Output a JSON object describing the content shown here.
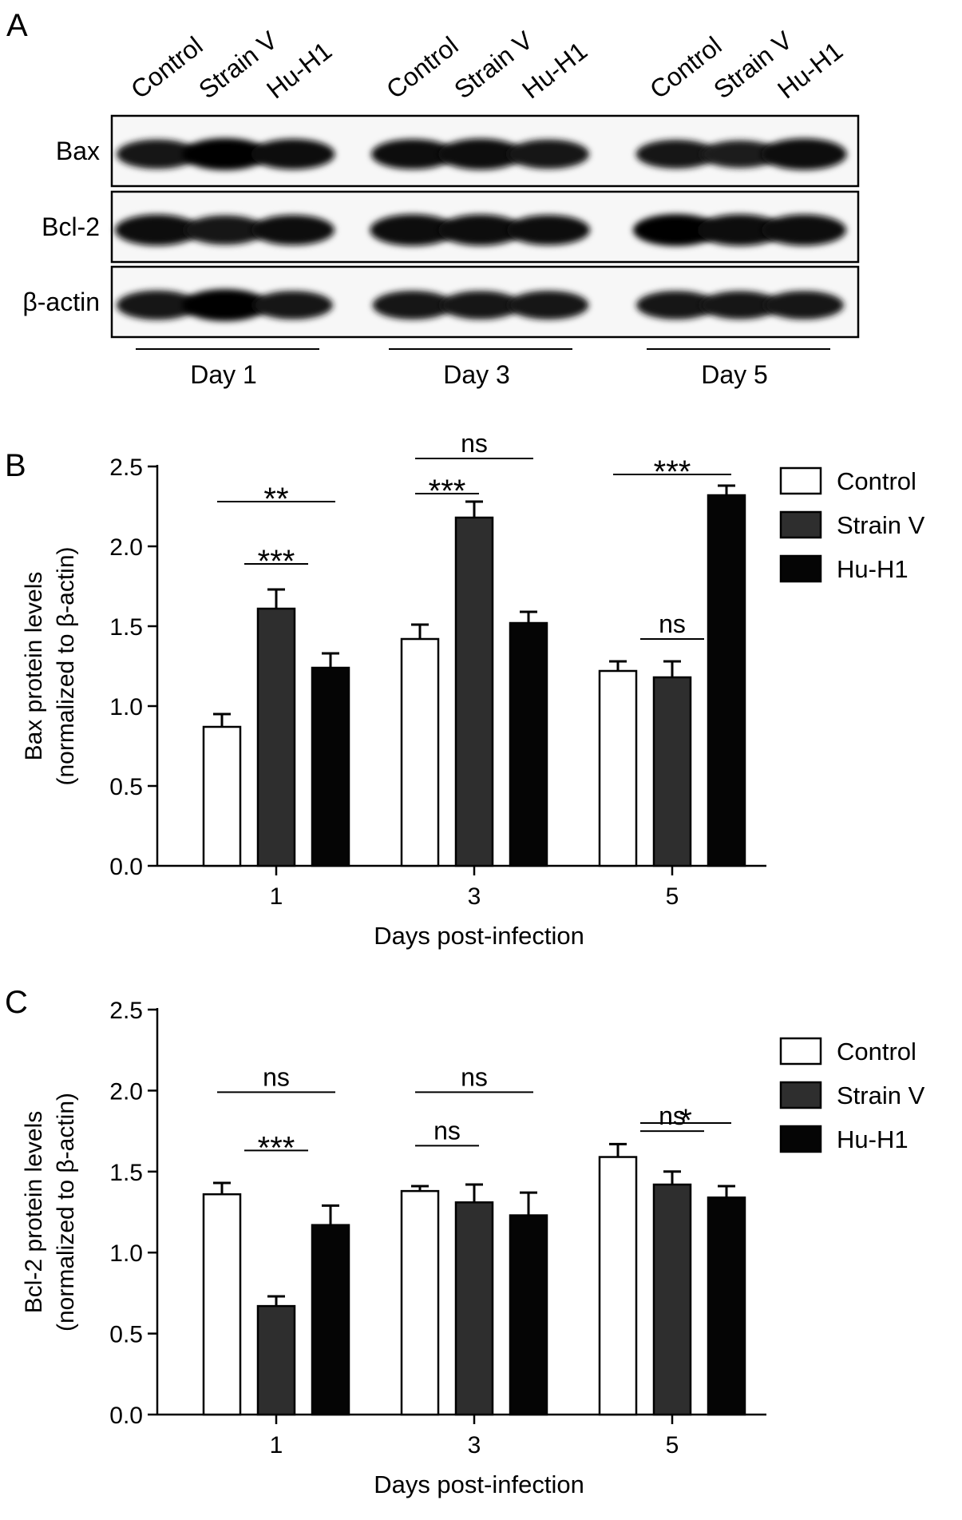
{
  "panel_a": {
    "label": "A",
    "lane_labels": [
      "Control",
      "Strain V",
      "Hu-H1",
      "Control",
      "Strain V",
      "Hu-H1",
      "Control",
      "Strain V",
      "Hu-H1"
    ],
    "row_labels": [
      "Bax",
      "Bcl-2",
      "β-actin"
    ],
    "day_labels": [
      "Day 1",
      "Day 3",
      "Day 5"
    ],
    "band_intensity": [
      [
        0.85,
        1.0,
        0.92,
        0.9,
        0.95,
        0.85,
        0.82,
        0.75,
        0.98
      ],
      [
        0.95,
        0.85,
        0.9,
        0.98,
        0.95,
        0.9,
        1.0,
        0.98,
        0.95
      ],
      [
        0.85,
        1.0,
        0.8,
        0.82,
        0.8,
        0.82,
        0.8,
        0.78,
        0.8
      ]
    ]
  },
  "legend": {
    "entries": [
      "Control",
      "Strain V",
      "Hu-H1"
    ],
    "colors": [
      "#ffffff",
      "#2e2e2e",
      "#050505"
    ]
  },
  "chart_data": [
    {
      "type": "bar",
      "panel_label": "B",
      "categories": [
        "1",
        "3",
        "5"
      ],
      "series": [
        {
          "name": "Control",
          "values": [
            0.87,
            1.42,
            1.22
          ],
          "errors": [
            0.08,
            0.09,
            0.06
          ]
        },
        {
          "name": "Strain V",
          "values": [
            1.61,
            2.18,
            1.18
          ],
          "errors": [
            0.12,
            0.1,
            0.1
          ]
        },
        {
          "name": "Hu-H1",
          "values": [
            1.24,
            1.52,
            2.32
          ],
          "errors": [
            0.09,
            0.07,
            0.06
          ]
        }
      ],
      "title": "",
      "xlabel": "Days post-infection",
      "ylabel_lines": [
        "Bax protein levels",
        "(normalized to β-actin)"
      ],
      "ylim": [
        0,
        2.5
      ],
      "yticks": [
        "0.0",
        "0.5",
        "1.0",
        "1.5",
        "2.0",
        "2.5"
      ],
      "grid": false,
      "legend_position": "top-right",
      "annotations": [
        {
          "text": "**",
          "group": 0,
          "from": 0,
          "to": 2,
          "level": 2.28
        },
        {
          "text": "***",
          "group": 0,
          "from": 0.5,
          "to": 1.5,
          "level": 1.89
        },
        {
          "text": "ns",
          "group": 1,
          "from": 0,
          "to": 2,
          "level": 2.55
        },
        {
          "text": "***",
          "group": 1,
          "from": 0,
          "to": 1,
          "level": 2.33
        },
        {
          "text": "***",
          "group": 2,
          "from": 0,
          "to": 2,
          "level": 2.45
        },
        {
          "text": "ns",
          "group": 2,
          "from": 0.5,
          "to": 1.5,
          "level": 1.42
        }
      ]
    },
    {
      "type": "bar",
      "panel_label": "C",
      "categories": [
        "1",
        "3",
        "5"
      ],
      "series": [
        {
          "name": "Control",
          "values": [
            1.36,
            1.38,
            1.59
          ],
          "errors": [
            0.07,
            0.03,
            0.08
          ]
        },
        {
          "name": "Strain V",
          "values": [
            0.67,
            1.31,
            1.42
          ],
          "errors": [
            0.06,
            0.11,
            0.08
          ]
        },
        {
          "name": "Hu-H1",
          "values": [
            1.17,
            1.23,
            1.34
          ],
          "errors": [
            0.12,
            0.14,
            0.07
          ]
        }
      ],
      "title": "",
      "xlabel": "Days post-infection",
      "ylabel_lines": [
        "Bcl-2 protein levels",
        "(normalized to β-actin)"
      ],
      "ylim": [
        0,
        2.5
      ],
      "yticks": [
        "0.0",
        "0.5",
        "1.0",
        "1.5",
        "2.0",
        "2.5"
      ],
      "grid": false,
      "legend_position": "top-right",
      "annotations": [
        {
          "text": "ns",
          "group": 0,
          "from": 0,
          "to": 2,
          "level": 1.99
        },
        {
          "text": "***",
          "group": 0,
          "from": 0.5,
          "to": 1.5,
          "level": 1.63
        },
        {
          "text": "ns",
          "group": 1,
          "from": 0,
          "to": 2,
          "level": 1.99
        },
        {
          "text": "ns",
          "group": 1,
          "from": 0,
          "to": 1,
          "level": 1.66
        },
        {
          "text": "*",
          "group": 2,
          "from": 0.5,
          "to": 2,
          "level": 1.8
        },
        {
          "text": "ns",
          "group": 2,
          "from": 0.5,
          "to": 1.5,
          "level": 1.75
        }
      ]
    }
  ]
}
